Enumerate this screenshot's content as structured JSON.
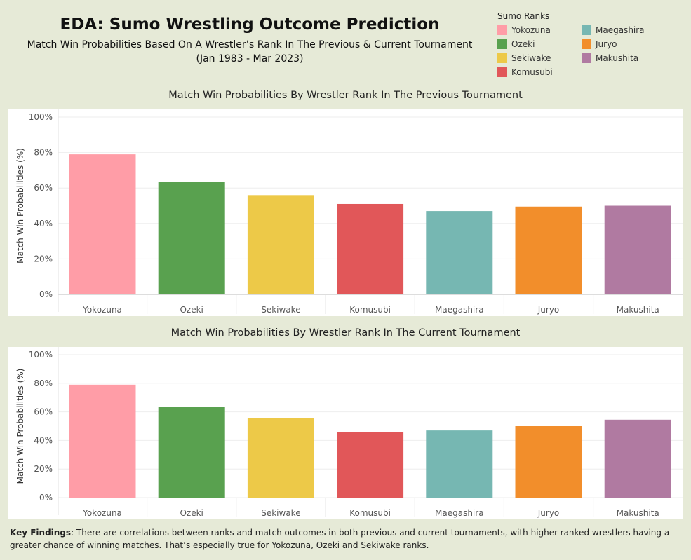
{
  "header": {
    "title": "EDA: Sumo Wrestling Outcome Prediction",
    "subtitle": "Match Win Probabilities Based On A Wrestler’s  Rank In The Previous & Current Tournament",
    "daterange": "(Jan 1983 - Mar 2023)"
  },
  "legend": {
    "title": "Sumo Ranks",
    "items": [
      {
        "label": "Yokozuna",
        "color": "#ff9da7"
      },
      {
        "label": "Ozeki",
        "color": "#59a14f"
      },
      {
        "label": "Sekiwake",
        "color": "#edc948"
      },
      {
        "label": "Komusubi",
        "color": "#e15759"
      },
      {
        "label": "Maegashira",
        "color": "#76b7b2"
      },
      {
        "label": "Juryo",
        "color": "#f28e2b"
      },
      {
        "label": "Makushita",
        "color": "#b07aa1"
      }
    ]
  },
  "chart_data": [
    {
      "type": "bar",
      "title": "Match Win Probabilities By Wrestler Rank In The Previous Tournament",
      "ylabel": "Match Win Probabilities (%)",
      "xlabel": "",
      "categories": [
        "Yokozuna",
        "Ozeki",
        "Sekiwake",
        "Komusubi",
        "Maegashira",
        "Juryo",
        "Makushita"
      ],
      "values": [
        79,
        63.5,
        56,
        51,
        47,
        49.5,
        50
      ],
      "colors": [
        "#ff9da7",
        "#59a14f",
        "#edc948",
        "#e15759",
        "#76b7b2",
        "#f28e2b",
        "#b07aa1"
      ],
      "ylim": [
        0,
        100
      ],
      "yticks": [
        "0%",
        "20%",
        "40%",
        "60%",
        "80%",
        "100%"
      ],
      "grid": true
    },
    {
      "type": "bar",
      "title": "Match Win Probabilities By Wrestler Rank In The Current Tournament",
      "ylabel": "Match Win Probabilities (%)",
      "xlabel": "",
      "categories": [
        "Yokozuna",
        "Ozeki",
        "Sekiwake",
        "Komusubi",
        "Maegashira",
        "Juryo",
        "Makushita"
      ],
      "values": [
        79,
        63.5,
        55.5,
        46,
        47,
        50,
        54.5
      ],
      "colors": [
        "#ff9da7",
        "#59a14f",
        "#edc948",
        "#e15759",
        "#76b7b2",
        "#f28e2b",
        "#b07aa1"
      ],
      "ylim": [
        0,
        100
      ],
      "yticks": [
        "0%",
        "20%",
        "40%",
        "60%",
        "80%",
        "100%"
      ],
      "grid": true
    }
  ],
  "findings": {
    "label": "Key Findings",
    "text": ": There are correlations between ranks and match outcomes in both previous and current tournaments, with higher-ranked wrestlers having a greater chance of winning matches. That’s especially true for Yokozuna, Ozeki and Sekiwake ranks."
  }
}
